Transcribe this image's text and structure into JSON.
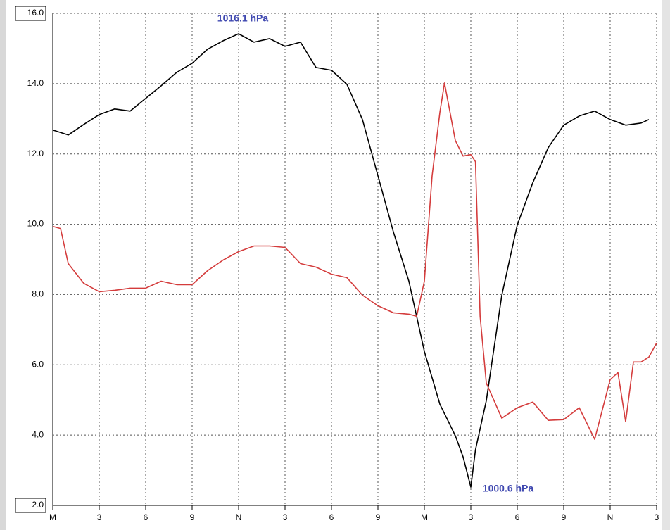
{
  "chart_data": {
    "type": "line",
    "annotations": [
      "1016.1 hPa",
      "1000.6 hPa"
    ],
    "xlim": [
      0,
      39
    ],
    "ylim": [
      2,
      16
    ],
    "grid": true,
    "xticks": [
      {
        "value": 0,
        "label": "M"
      },
      3,
      {
        "value": 6,
        "label": "6"
      },
      9,
      {
        "value": 12,
        "label": "N"
      },
      {
        "value": 15,
        "label": "3"
      },
      {
        "value": 18,
        "label": "6"
      },
      {
        "value": 21,
        "label": "9"
      },
      {
        "value": 24,
        "label": "M"
      },
      {
        "value": 27,
        "label": "3"
      },
      {
        "value": 30,
        "label": "6"
      },
      {
        "value": 33,
        "label": "9"
      },
      {
        "value": 36,
        "label": "N"
      },
      {
        "value": 39,
        "label": "3"
      }
    ],
    "yticks": [
      {
        "value": 2,
        "label": "2.0"
      },
      {
        "value": 4,
        "label": "4.0"
      },
      {
        "value": 6,
        "label": "6.0"
      },
      {
        "value": 8,
        "label": "8.0"
      },
      {
        "value": 10,
        "label": "10.0"
      },
      {
        "value": 12,
        "label": "12.0"
      },
      {
        "value": 14,
        "label": "14.0"
      },
      {
        "value": 16,
        "label": "16.0"
      }
    ],
    "series": [
      {
        "color": "#000000",
        "x": [
          0,
          1,
          2,
          3,
          4,
          5,
          6,
          7,
          8,
          9,
          10,
          11,
          12,
          13,
          14,
          15,
          16,
          17,
          18,
          19,
          20,
          21,
          22,
          23,
          24,
          25,
          26,
          26.5,
          27,
          27.3,
          28,
          29,
          30,
          31,
          32,
          33,
          34,
          35,
          36,
          37,
          38,
          38.5
        ],
        "values": [
          12.68,
          12.54,
          12.84,
          13.12,
          13.28,
          13.22,
          13.58,
          13.94,
          14.32,
          14.58,
          14.98,
          15.22,
          15.42,
          15.18,
          15.28,
          15.06,
          15.18,
          14.46,
          14.38,
          13.98,
          12.98,
          11.38,
          9.78,
          8.38,
          6.38,
          4.88,
          3.98,
          3.38,
          2.52,
          3.58,
          4.98,
          7.98,
          9.98,
          11.18,
          12.18,
          12.82,
          13.08,
          13.22,
          12.98,
          12.82,
          12.88,
          12.98
        ]
      },
      {
        "color": "#d43c3c",
        "x": [
          0,
          0.5,
          1,
          2,
          3,
          4,
          5,
          6,
          7,
          8,
          9,
          10,
          11,
          12,
          13,
          14,
          15,
          16,
          17,
          18,
          19,
          20,
          21,
          22,
          23,
          23.5,
          24,
          24.5,
          25,
          25.3,
          26,
          26.5,
          27,
          27.3,
          27.6,
          28,
          29,
          30,
          31,
          32,
          33,
          34,
          35,
          36,
          36.5,
          37,
          37.5,
          38,
          38.5,
          39
        ],
        "values": [
          9.94,
          9.88,
          8.88,
          8.32,
          8.08,
          8.12,
          8.18,
          8.18,
          8.38,
          8.28,
          8.28,
          8.68,
          8.98,
          9.22,
          9.38,
          9.38,
          9.34,
          8.88,
          8.78,
          8.58,
          8.48,
          7.98,
          7.68,
          7.48,
          7.44,
          7.38,
          8.38,
          11.38,
          13.18,
          14.02,
          12.38,
          11.94,
          11.98,
          11.78,
          7.38,
          5.48,
          4.48,
          4.78,
          4.94,
          4.42,
          4.44,
          4.78,
          3.88,
          5.58,
          5.78,
          4.38,
          6.08,
          6.08,
          6.22,
          6.62
        ]
      }
    ]
  }
}
